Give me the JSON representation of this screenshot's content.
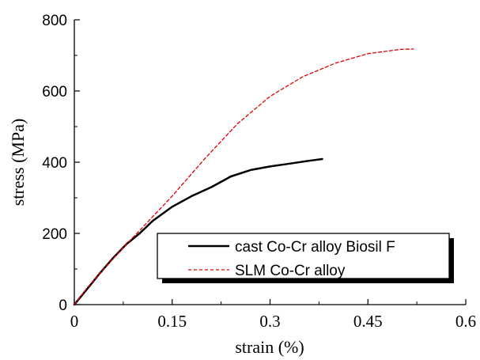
{
  "chart_data": {
    "type": "line",
    "xlabel": "strain (%)",
    "ylabel": "stress (MPa)",
    "xlim": [
      0,
      0.6
    ],
    "ylim": [
      0,
      800
    ],
    "x_ticks": [
      0,
      0.15,
      0.3,
      0.45,
      0.6
    ],
    "x_tick_labels": [
      "0",
      "0.15",
      "0.3",
      "0.45",
      "0.6"
    ],
    "y_ticks": [
      0,
      200,
      400,
      600,
      800
    ],
    "y_tick_labels": [
      "0",
      "200",
      "400",
      "600",
      "800"
    ],
    "grid": false,
    "legend_position": "bottom-center",
    "series": [
      {
        "name": "cast Co-Cr alloy Biosil F",
        "color": "#000000",
        "style": "solid",
        "x": [
          0,
          0.02,
          0.04,
          0.06,
          0.08,
          0.1,
          0.12,
          0.15,
          0.18,
          0.21,
          0.24,
          0.27,
          0.3,
          0.33,
          0.36,
          0.38
        ],
        "y": [
          0,
          45,
          90,
          132,
          170,
          200,
          235,
          275,
          305,
          330,
          360,
          378,
          388,
          396,
          404,
          409
        ]
      },
      {
        "name": "SLM Co-Cr alloy",
        "color": "#e00000",
        "style": "dashed",
        "x": [
          0,
          0.02,
          0.05,
          0.08,
          0.1,
          0.15,
          0.2,
          0.25,
          0.3,
          0.35,
          0.4,
          0.45,
          0.5,
          0.52
        ],
        "y": [
          0,
          48,
          110,
          170,
          208,
          305,
          410,
          508,
          585,
          640,
          678,
          705,
          717,
          718
        ]
      }
    ]
  }
}
